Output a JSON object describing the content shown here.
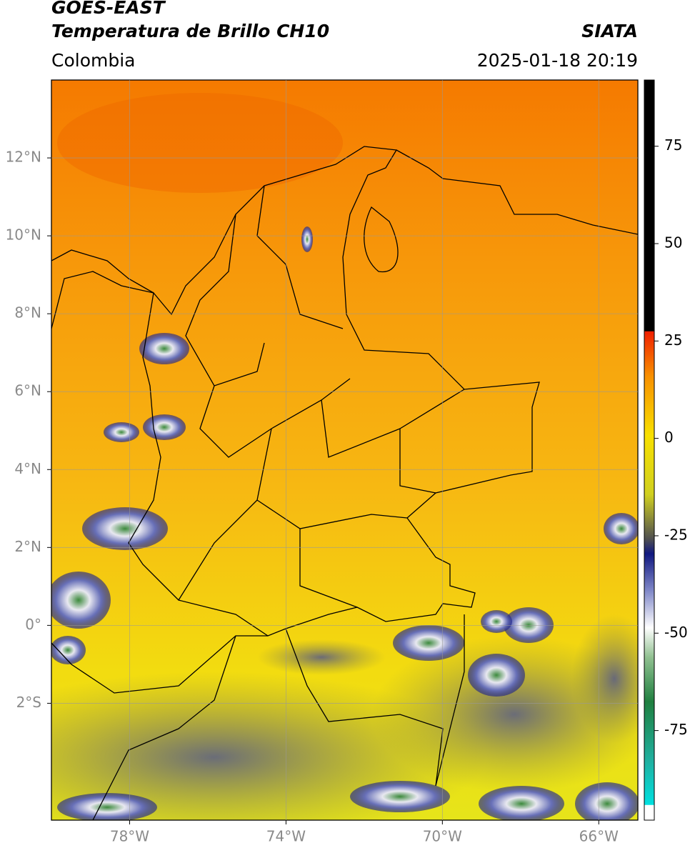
{
  "header": {
    "title": "GOES-EAST",
    "subtitle": "Temperatura de Brillo CH10",
    "source": "SIATA",
    "region": "Colombia",
    "datetime": "2025-01-18 20:19"
  },
  "map": {
    "xlim": [
      -80,
      -65
    ],
    "ylim": [
      -5,
      14
    ],
    "xticks": [
      {
        "value": -78,
        "label": "78°W"
      },
      {
        "value": -74,
        "label": "74°W"
      },
      {
        "value": -70,
        "label": "70°W"
      },
      {
        "value": -66,
        "label": "66°W"
      }
    ],
    "yticks": [
      {
        "value": 12,
        "label": "12°N"
      },
      {
        "value": 10,
        "label": "10°N"
      },
      {
        "value": 8,
        "label": "8°N"
      },
      {
        "value": 6,
        "label": "6°N"
      },
      {
        "value": 4,
        "label": "4°N"
      },
      {
        "value": 2,
        "label": "2°N"
      },
      {
        "value": 0,
        "label": "0°"
      },
      {
        "value": -2,
        "label": "2°S"
      }
    ],
    "grid": true
  },
  "colorbar": {
    "lim": [
      -98,
      92
    ],
    "ticks": [
      75,
      50,
      25,
      0,
      -25,
      -50,
      -75
    ]
  }
}
